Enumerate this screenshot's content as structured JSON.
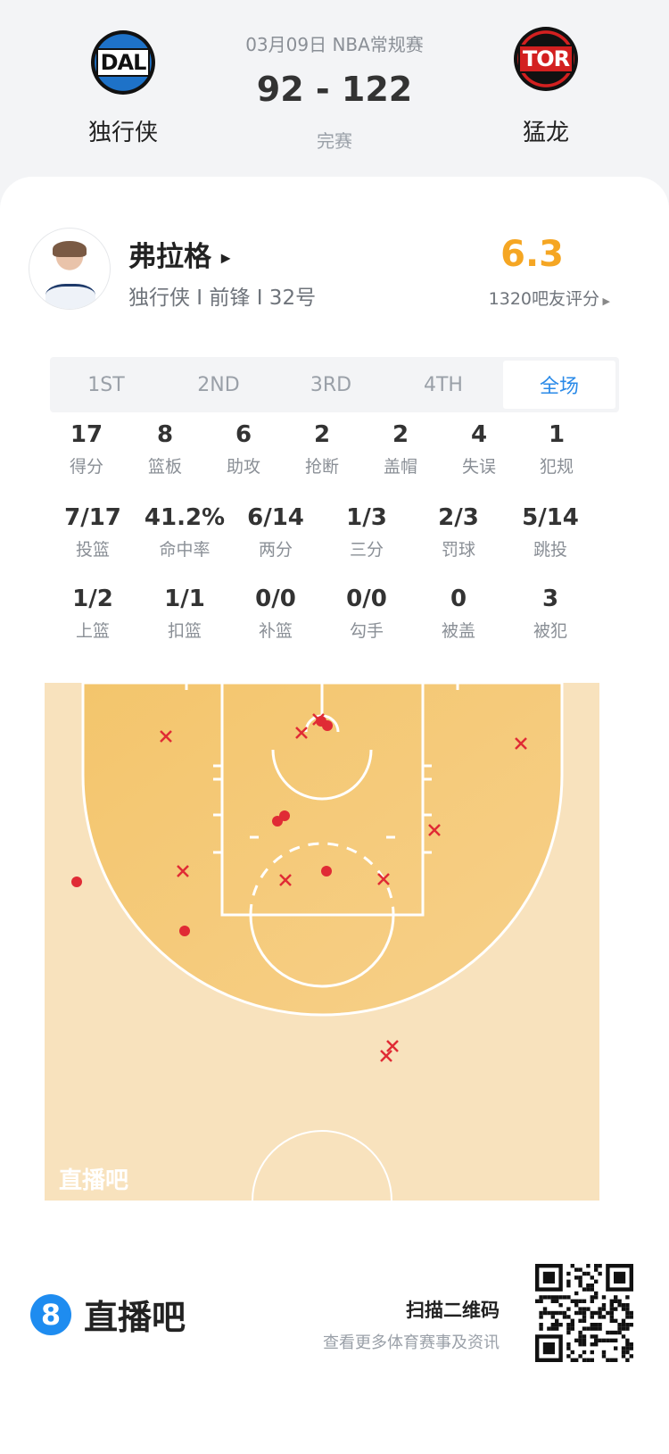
{
  "header": {
    "date_league": "03月09日 NBA常规赛",
    "score": "92 - 122",
    "status": "完赛",
    "home": {
      "abbr": "DAL",
      "name": "独行侠"
    },
    "away": {
      "abbr": "TOR",
      "name": "猛龙"
    }
  },
  "player": {
    "name": "弗拉格",
    "info": "独行侠 I 前锋 I 32号",
    "rating": "6.3",
    "rating_count": "1320吧友评分",
    "rating_color": "#f5a623"
  },
  "tabs": [
    {
      "label": "1ST"
    },
    {
      "label": "2ND"
    },
    {
      "label": "3RD"
    },
    {
      "label": "4TH"
    },
    {
      "label": "全场",
      "active": true
    }
  ],
  "stats_row1": [
    {
      "v": "17",
      "l": "得分"
    },
    {
      "v": "8",
      "l": "篮板"
    },
    {
      "v": "6",
      "l": "助攻"
    },
    {
      "v": "2",
      "l": "抢断"
    },
    {
      "v": "2",
      "l": "盖帽"
    },
    {
      "v": "4",
      "l": "失误"
    },
    {
      "v": "1",
      "l": "犯规"
    }
  ],
  "stats_row2": [
    {
      "v": "7/17",
      "l": "投篮"
    },
    {
      "v": "41.2%",
      "l": "命中率"
    },
    {
      "v": "6/14",
      "l": "两分"
    },
    {
      "v": "1/3",
      "l": "三分"
    },
    {
      "v": "2/3",
      "l": "罚球"
    },
    {
      "v": "5/14",
      "l": "跳投"
    }
  ],
  "stats_row3": [
    {
      "v": "1/2",
      "l": "上篮"
    },
    {
      "v": "1/1",
      "l": "扣篮"
    },
    {
      "v": "0/0",
      "l": "补篮"
    },
    {
      "v": "0/0",
      "l": "勾手"
    },
    {
      "v": "0",
      "l": "被盖"
    },
    {
      "v": "3",
      "l": "被犯"
    }
  ],
  "shot_chart": {
    "watermark": "直播吧",
    "made_count": 7,
    "missed_count": 10,
    "shot_color": "#e02b35"
  },
  "footer": {
    "brand": "直播吧",
    "scan_title": "扫描二维码",
    "scan_sub": "查看更多体育赛事及资讯",
    "accent": "#1e8cf0"
  }
}
